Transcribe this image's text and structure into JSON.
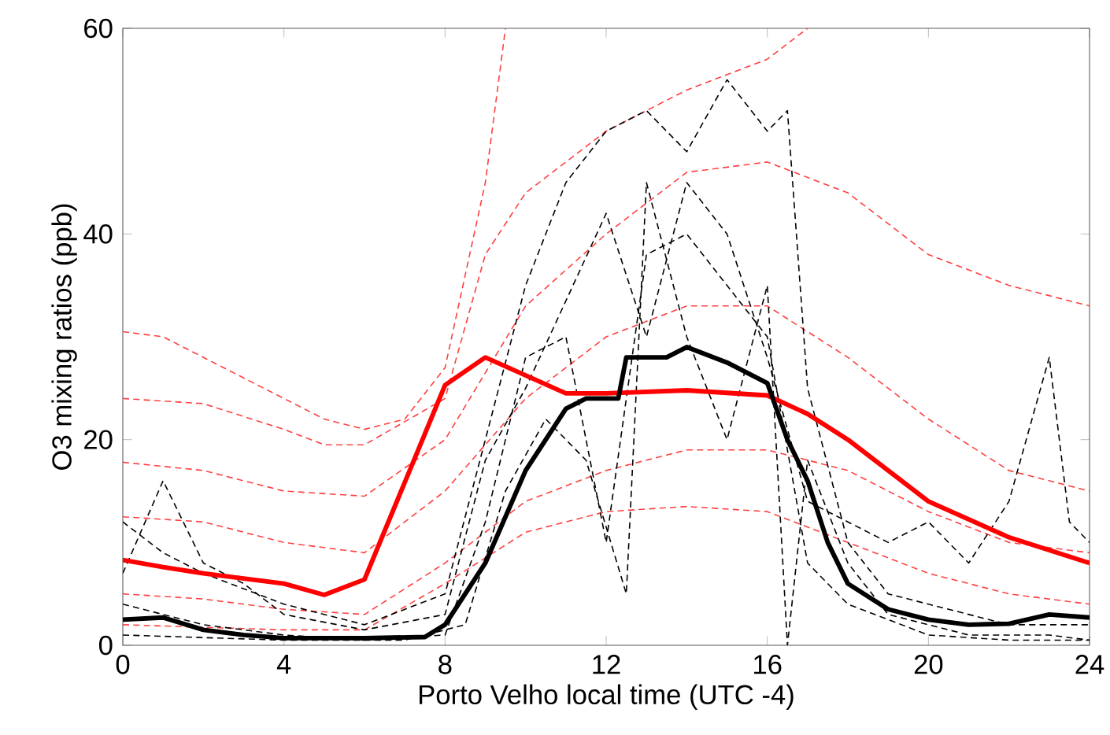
{
  "chart_data": {
    "type": "line",
    "xlabel": "Porto Velho local time (UTC -4)",
    "ylabel": "O3 mixing ratios (ppb)",
    "xlim": [
      0,
      24
    ],
    "ylim": [
      0,
      60
    ],
    "xticks": [
      0,
      4,
      8,
      12,
      16,
      20,
      24
    ],
    "yticks": [
      0,
      20,
      40,
      60
    ],
    "grid": false,
    "series": [
      {
        "color": "#ff4040",
        "line_style": "dashed",
        "x": [
          0,
          1,
          3,
          5,
          6,
          7,
          8,
          9,
          9.5
        ],
        "values": [
          30.5,
          30,
          26,
          22,
          21,
          22,
          27,
          45,
          60
        ]
      },
      {
        "color": "#ff4040",
        "line_style": "dashed",
        "x": [
          0,
          2,
          4,
          5,
          6,
          8,
          9,
          10,
          12,
          14,
          16,
          17
        ],
        "values": [
          24,
          23.5,
          21,
          19.5,
          19.5,
          24,
          38,
          44,
          50,
          54,
          57,
          60
        ]
      },
      {
        "color": "#ff4040",
        "line_style": "dashed",
        "x": [
          0,
          2,
          4,
          6,
          8,
          10,
          12,
          14,
          16,
          18,
          20,
          22,
          24
        ],
        "values": [
          17.8,
          17,
          15,
          14.5,
          20,
          33,
          40,
          46,
          47,
          44,
          38,
          35,
          33
        ]
      },
      {
        "color": "#ff4040",
        "line_style": "dashed",
        "x": [
          0,
          2,
          4,
          6,
          8,
          10,
          12,
          14,
          16,
          18,
          20,
          22,
          24
        ],
        "values": [
          12.5,
          12,
          10,
          9,
          15,
          24,
          30,
          33,
          33,
          28,
          22,
          17,
          15
        ]
      },
      {
        "color": "#ff4040",
        "line_style": "dashed",
        "x": [
          0,
          2,
          4,
          6,
          8,
          10,
          12,
          14,
          16,
          18,
          20,
          22,
          24
        ],
        "values": [
          5,
          4.5,
          3.5,
          3,
          8,
          14,
          17,
          19,
          19,
          17,
          13,
          10,
          9
        ]
      },
      {
        "color": "#ff4040",
        "line_style": "dashed",
        "x": [
          0,
          4,
          6,
          8,
          10,
          12,
          14,
          16,
          18,
          20,
          22,
          24
        ],
        "values": [
          2,
          1.5,
          1.5,
          6,
          11,
          13,
          13.5,
          13,
          10,
          7,
          5,
          4
        ]
      },
      {
        "color": "#000000",
        "line_style": "dashed",
        "x": [
          0,
          1,
          2,
          4,
          6,
          8,
          9,
          10,
          11,
          12,
          13,
          14,
          15,
          16,
          16.5,
          17,
          18,
          19,
          20,
          22,
          24
        ],
        "values": [
          12,
          9,
          7,
          4,
          2,
          5,
          20,
          35,
          45,
          50,
          52,
          48,
          55,
          50,
          52,
          25,
          10,
          5,
          4,
          2,
          2
        ]
      },
      {
        "color": "#000000",
        "line_style": "dashed",
        "x": [
          0,
          2,
          4,
          6,
          8,
          9,
          10,
          11,
          12,
          13,
          14,
          15,
          16,
          17,
          18,
          20,
          22,
          24
        ],
        "values": [
          4,
          2,
          1,
          0.5,
          1,
          12,
          28,
          30,
          10,
          38,
          40,
          35,
          30,
          8,
          4,
          1,
          0.5,
          0.5
        ]
      },
      {
        "color": "#000000",
        "line_style": "dashed",
        "x": [
          0,
          4,
          7,
          8.5,
          9.5,
          10.5,
          11.5,
          12.5,
          13,
          14,
          15,
          16,
          16.5,
          17,
          18,
          19,
          21,
          23,
          24
        ],
        "values": [
          1,
          0.5,
          0.5,
          2,
          15,
          22,
          18,
          5,
          45,
          30,
          20,
          35,
          0,
          18,
          8,
          3,
          1,
          1,
          0.5
        ]
      },
      {
        "color": "#000000",
        "line_style": "dashed",
        "x": [
          0,
          1,
          2,
          3,
          4,
          6,
          8,
          9,
          10,
          12,
          13,
          14,
          15,
          16,
          17,
          18,
          19,
          20,
          21,
          22,
          23,
          23.5,
          24
        ],
        "values": [
          7,
          16,
          8,
          6,
          3,
          1.5,
          3,
          18,
          25,
          42,
          30,
          45,
          40,
          28,
          14,
          12,
          10,
          12,
          8,
          14,
          28,
          12,
          10
        ]
      },
      {
        "color": "#ff0000",
        "line_style": "solid",
        "x": [
          0,
          1,
          2,
          3,
          4,
          5,
          6,
          8,
          9,
          11,
          12,
          14,
          16,
          17,
          18,
          20,
          22,
          24
        ],
        "values": [
          8.3,
          7.6,
          7,
          6.5,
          6,
          4.9,
          6.4,
          25.3,
          28,
          24.5,
          24.5,
          24.8,
          24.3,
          22.5,
          20,
          14,
          10.5,
          8
        ]
      },
      {
        "color": "#000000",
        "line_style": "solid",
        "x": [
          0,
          1,
          2,
          3,
          4,
          6,
          7.5,
          8,
          9,
          10,
          11,
          11.5,
          12.3,
          12.5,
          13.5,
          14,
          15,
          16,
          16.5,
          17,
          17.5,
          18,
          19,
          20,
          21,
          22,
          23,
          24
        ],
        "values": [
          2.5,
          2.7,
          1.5,
          1,
          0.7,
          0.7,
          0.8,
          2,
          8,
          17,
          23,
          24,
          24,
          28,
          28,
          29,
          27.5,
          25.5,
          20,
          16,
          10,
          6,
          3.5,
          2.5,
          2,
          2.1,
          3,
          2.7
        ]
      }
    ]
  }
}
